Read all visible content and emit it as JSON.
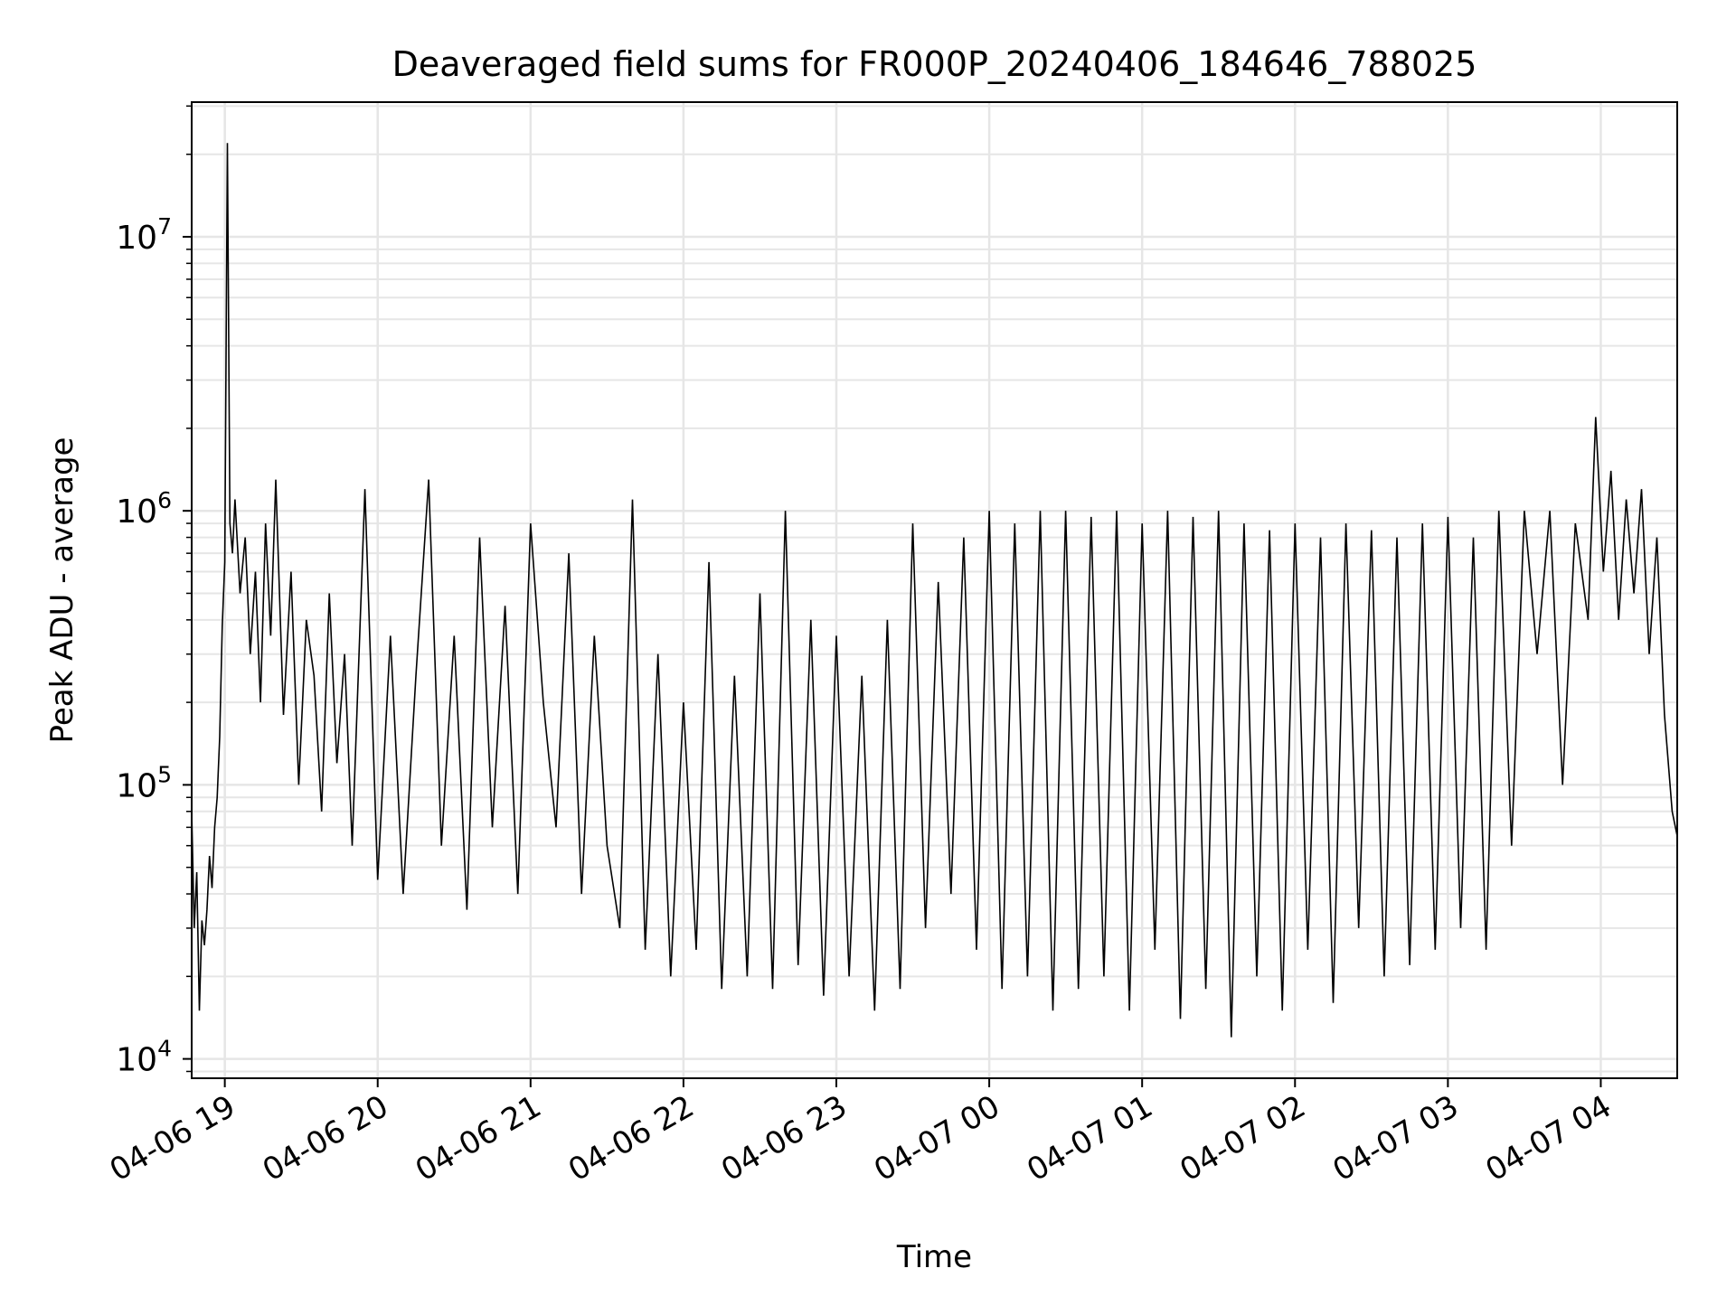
{
  "chart_data": {
    "type": "line",
    "title": "Deaveraged field sums for FR000P_20240406_184646_788025",
    "xlabel": "Time",
    "ylabel": "Peak ADU - average",
    "yscale": "log",
    "ylim": [
      8500,
      31000000
    ],
    "xlim": [
      "2024-04-06 18:47",
      "2024-04-07 04:30"
    ],
    "x_ticks": [
      "04-06 19",
      "04-06 20",
      "04-06 21",
      "04-06 22",
      "04-06 23",
      "04-07 00",
      "04-07 01",
      "04-07 02",
      "04-07 03",
      "04-07 04"
    ],
    "y_ticks": [
      {
        "value": 10000,
        "base": "10",
        "exp": "4"
      },
      {
        "value": 100000,
        "base": "10",
        "exp": "5"
      },
      {
        "value": 1000000,
        "base": "10",
        "exp": "6"
      },
      {
        "value": 10000000,
        "base": "10",
        "exp": "7"
      }
    ],
    "grid": true,
    "line_color": "#000000",
    "series": [
      {
        "x": [
          "2024-04-06 18:47",
          "2024-04-06 18:48",
          "2024-04-06 18:49",
          "2024-04-06 18:50",
          "2024-04-06 18:51",
          "2024-04-06 18:52",
          "2024-04-06 18:53",
          "2024-04-06 18:54",
          "2024-04-06 18:55",
          "2024-04-06 18:56",
          "2024-04-06 18:57",
          "2024-04-06 18:58",
          "2024-04-06 18:59",
          "2024-04-06 19:00",
          "2024-04-06 19:01",
          "2024-04-06 19:02",
          "2024-04-06 19:03",
          "2024-04-06 19:04",
          "2024-04-06 19:06",
          "2024-04-06 19:08",
          "2024-04-06 19:10",
          "2024-04-06 19:12",
          "2024-04-06 19:14",
          "2024-04-06 19:16",
          "2024-04-06 19:18",
          "2024-04-06 19:20",
          "2024-04-06 19:23",
          "2024-04-06 19:26",
          "2024-04-06 19:29",
          "2024-04-06 19:32",
          "2024-04-06 19:35",
          "2024-04-06 19:38",
          "2024-04-06 19:41",
          "2024-04-06 19:44",
          "2024-04-06 19:47",
          "2024-04-06 19:50",
          "2024-04-06 19:55",
          "2024-04-06 20:00",
          "2024-04-06 20:05",
          "2024-04-06 20:10",
          "2024-04-06 20:15",
          "2024-04-06 20:20",
          "2024-04-06 20:25",
          "2024-04-06 20:30",
          "2024-04-06 20:35",
          "2024-04-06 20:40",
          "2024-04-06 20:45",
          "2024-04-06 20:50",
          "2024-04-06 20:55",
          "2024-04-06 21:00",
          "2024-04-06 21:05",
          "2024-04-06 21:10",
          "2024-04-06 21:15",
          "2024-04-06 21:20",
          "2024-04-06 21:25",
          "2024-04-06 21:30",
          "2024-04-06 21:35",
          "2024-04-06 21:40",
          "2024-04-06 21:45",
          "2024-04-06 21:50",
          "2024-04-06 21:55",
          "2024-04-06 22:00",
          "2024-04-06 22:05",
          "2024-04-06 22:10",
          "2024-04-06 22:15",
          "2024-04-06 22:20",
          "2024-04-06 22:25",
          "2024-04-06 22:30",
          "2024-04-06 22:35",
          "2024-04-06 22:40",
          "2024-04-06 22:45",
          "2024-04-06 22:50",
          "2024-04-06 22:55",
          "2024-04-06 23:00",
          "2024-04-06 23:05",
          "2024-04-06 23:10",
          "2024-04-06 23:15",
          "2024-04-06 23:20",
          "2024-04-06 23:25",
          "2024-04-06 23:30",
          "2024-04-06 23:35",
          "2024-04-06 23:40",
          "2024-04-06 23:45",
          "2024-04-06 23:50",
          "2024-04-06 23:55",
          "2024-04-07 00:00",
          "2024-04-07 00:05",
          "2024-04-07 00:10",
          "2024-04-07 00:15",
          "2024-04-07 00:20",
          "2024-04-07 00:25",
          "2024-04-07 00:30",
          "2024-04-07 00:35",
          "2024-04-07 00:40",
          "2024-04-07 00:45",
          "2024-04-07 00:50",
          "2024-04-07 00:55",
          "2024-04-07 01:00",
          "2024-04-07 01:05",
          "2024-04-07 01:10",
          "2024-04-07 01:15",
          "2024-04-07 01:20",
          "2024-04-07 01:25",
          "2024-04-07 01:30",
          "2024-04-07 01:35",
          "2024-04-07 01:40",
          "2024-04-07 01:45",
          "2024-04-07 01:50",
          "2024-04-07 01:55",
          "2024-04-07 02:00",
          "2024-04-07 02:05",
          "2024-04-07 02:10",
          "2024-04-07 02:15",
          "2024-04-07 02:20",
          "2024-04-07 02:25",
          "2024-04-07 02:30",
          "2024-04-07 02:35",
          "2024-04-07 02:40",
          "2024-04-07 02:45",
          "2024-04-07 02:50",
          "2024-04-07 02:55",
          "2024-04-07 03:00",
          "2024-04-07 03:05",
          "2024-04-07 03:10",
          "2024-04-07 03:15",
          "2024-04-07 03:20",
          "2024-04-07 03:25",
          "2024-04-07 03:30",
          "2024-04-07 03:35",
          "2024-04-07 03:40",
          "2024-04-07 03:45",
          "2024-04-07 03:50",
          "2024-04-07 03:55",
          "2024-04-07 03:58",
          "2024-04-07 04:01",
          "2024-04-07 04:04",
          "2024-04-07 04:07",
          "2024-04-07 04:10",
          "2024-04-07 04:13",
          "2024-04-07 04:16",
          "2024-04-07 04:19",
          "2024-04-07 04:22",
          "2024-04-07 04:25",
          "2024-04-07 04:28",
          "2024-04-07 04:30"
        ],
        "y": [
          80000,
          30000,
          48000,
          15000,
          32000,
          26000,
          35000,
          55000,
          42000,
          70000,
          90000,
          150000,
          380000,
          650000,
          22000000,
          900000,
          700000,
          1100000,
          500000,
          800000,
          300000,
          600000,
          200000,
          900000,
          350000,
          1300000,
          180000,
          600000,
          100000,
          400000,
          250000,
          80000,
          500000,
          120000,
          300000,
          60000,
          1200000,
          45000,
          350000,
          40000,
          250000,
          1300000,
          60000,
          350000,
          35000,
          800000,
          70000,
          450000,
          40000,
          900000,
          200000,
          70000,
          700000,
          40000,
          350000,
          60000,
          30000,
          1100000,
          25000,
          300000,
          20000,
          200000,
          25000,
          650000,
          18000,
          250000,
          20000,
          500000,
          18000,
          1000000,
          22000,
          400000,
          17000,
          350000,
          20000,
          250000,
          15000,
          400000,
          18000,
          900000,
          30000,
          550000,
          40000,
          800000,
          25000,
          1000000,
          18000,
          900000,
          20000,
          1000000,
          15000,
          1000000,
          18000,
          950000,
          20000,
          1000000,
          15000,
          900000,
          25000,
          1000000,
          14000,
          950000,
          18000,
          1000000,
          12000,
          900000,
          20000,
          850000,
          15000,
          900000,
          25000,
          800000,
          16000,
          900000,
          30000,
          850000,
          20000,
          800000,
          22000,
          900000,
          25000,
          950000,
          30000,
          800000,
          25000,
          1000000,
          60000,
          1000000,
          300000,
          1000000,
          100000,
          900000,
          400000,
          2200000,
          600000,
          1400000,
          400000,
          1100000,
          500000,
          1200000,
          300000,
          800000,
          180000,
          80000,
          65000
        ]
      }
    ]
  }
}
